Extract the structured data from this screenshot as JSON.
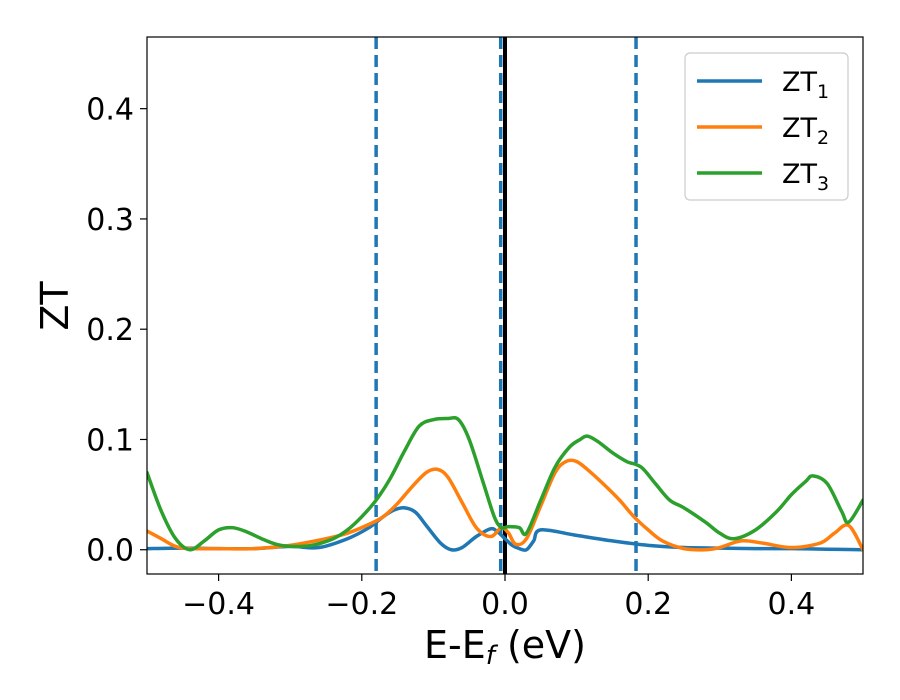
{
  "chart_data": {
    "type": "line",
    "xlabel": "E-E",
    "xlabel_sub": "f",
    "xlabel_unit": " (eV)",
    "ylabel": "ZT",
    "xlim": [
      -0.5,
      0.5
    ],
    "ylim": [
      -0.022,
      0.465
    ],
    "xticks": [
      -0.4,
      -0.2,
      0.0,
      0.2,
      0.4
    ],
    "xtick_labels": [
      "−0.4",
      "−0.2",
      "0.0",
      "0.2",
      "0.4"
    ],
    "yticks": [
      0.0,
      0.1,
      0.2,
      0.3,
      0.4
    ],
    "ytick_labels": [
      "0.0",
      "0.1",
      "0.2",
      "0.3",
      "0.4"
    ],
    "grid": false,
    "legend_position": "top-right",
    "vlines": [
      {
        "x": -0.18,
        "style": "dashed",
        "color": "#1f77b4"
      },
      {
        "x": -0.006,
        "style": "dashed",
        "color": "#1f77b4"
      },
      {
        "x": 0.0,
        "style": "solid",
        "color": "#000000"
      },
      {
        "x": 0.183,
        "style": "dashed",
        "color": "#1f77b4"
      }
    ],
    "series": [
      {
        "name": "ZT",
        "name_sub": "1",
        "color": "#1f77b4",
        "x": [
          -0.5,
          -0.45,
          -0.4,
          -0.35,
          -0.3,
          -0.26,
          -0.22,
          -0.19,
          -0.17,
          -0.155,
          -0.14,
          -0.125,
          -0.11,
          -0.09,
          -0.075,
          -0.06,
          -0.04,
          -0.02,
          -0.01,
          0.0,
          0.01,
          0.02,
          0.03,
          0.04,
          0.05,
          0.1,
          0.15,
          0.2,
          0.25,
          0.3,
          0.35,
          0.4,
          0.45,
          0.5
        ],
        "y": [
          0.001,
          0.0015,
          0.001,
          0.001,
          0.003,
          0.002,
          0.01,
          0.02,
          0.03,
          0.036,
          0.038,
          0.034,
          0.022,
          0.006,
          0.0,
          0.002,
          0.012,
          0.019,
          0.016,
          0.01,
          0.004,
          0.001,
          0.0,
          0.008,
          0.018,
          0.013,
          0.008,
          0.004,
          0.002,
          0.0015,
          0.001,
          0.001,
          0.0005,
          0.0
        ]
      },
      {
        "name": "ZT",
        "name_sub": "2",
        "color": "#ff7f0e",
        "x": [
          -0.5,
          -0.48,
          -0.46,
          -0.44,
          -0.4,
          -0.35,
          -0.3,
          -0.25,
          -0.22,
          -0.19,
          -0.17,
          -0.15,
          -0.13,
          -0.11,
          -0.095,
          -0.08,
          -0.06,
          -0.04,
          -0.02,
          -0.005,
          0.005,
          0.015,
          0.03,
          0.05,
          0.07,
          0.085,
          0.1,
          0.12,
          0.14,
          0.16,
          0.18,
          0.2,
          0.22,
          0.25,
          0.28,
          0.3,
          0.33,
          0.36,
          0.4,
          0.44,
          0.46,
          0.48,
          0.5
        ],
        "y": [
          0.017,
          0.01,
          0.003,
          0.001,
          0.001,
          0.001,
          0.004,
          0.01,
          0.015,
          0.023,
          0.03,
          0.042,
          0.057,
          0.07,
          0.073,
          0.066,
          0.043,
          0.02,
          0.012,
          0.02,
          0.015,
          0.005,
          0.01,
          0.04,
          0.07,
          0.08,
          0.08,
          0.07,
          0.058,
          0.045,
          0.03,
          0.018,
          0.008,
          0.001,
          0.0,
          0.002,
          0.008,
          0.006,
          0.002,
          0.006,
          0.015,
          0.022,
          0.0
        ]
      },
      {
        "name": "ZT",
        "name_sub": "3",
        "color": "#2ca02c",
        "x": [
          -0.5,
          -0.48,
          -0.46,
          -0.44,
          -0.42,
          -0.4,
          -0.38,
          -0.36,
          -0.34,
          -0.32,
          -0.3,
          -0.27,
          -0.24,
          -0.22,
          -0.2,
          -0.18,
          -0.16,
          -0.14,
          -0.12,
          -0.1,
          -0.08,
          -0.065,
          -0.05,
          -0.03,
          -0.015,
          -0.005,
          0.005,
          0.02,
          0.03,
          0.05,
          0.07,
          0.09,
          0.105,
          0.115,
          0.13,
          0.15,
          0.17,
          0.19,
          0.21,
          0.23,
          0.25,
          0.28,
          0.3,
          0.32,
          0.35,
          0.38,
          0.4,
          0.42,
          0.43,
          0.45,
          0.47,
          0.48,
          0.5
        ],
        "y": [
          0.07,
          0.035,
          0.01,
          0.0,
          0.008,
          0.018,
          0.02,
          0.016,
          0.01,
          0.005,
          0.003,
          0.004,
          0.01,
          0.018,
          0.03,
          0.045,
          0.065,
          0.09,
          0.112,
          0.118,
          0.119,
          0.118,
          0.1,
          0.06,
          0.03,
          0.02,
          0.021,
          0.02,
          0.015,
          0.045,
          0.075,
          0.093,
          0.1,
          0.103,
          0.098,
          0.088,
          0.08,
          0.075,
          0.06,
          0.045,
          0.038,
          0.025,
          0.015,
          0.01,
          0.018,
          0.035,
          0.05,
          0.062,
          0.067,
          0.06,
          0.035,
          0.025,
          0.045
        ]
      }
    ]
  }
}
